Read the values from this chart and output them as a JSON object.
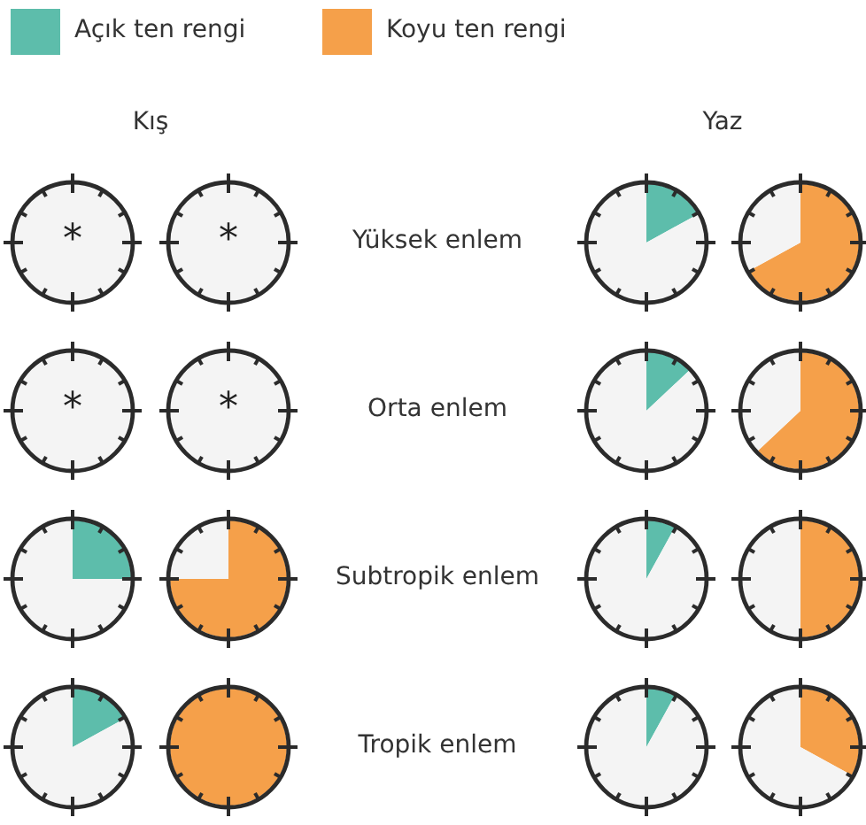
{
  "chart_data": [
    {
      "type": "other",
      "annotations": [
        "Açık ten rengi",
        "Koyu ten rengi",
        "Kış",
        "Yaz",
        "Yüksek enlem",
        "Orta enlem",
        "Subtropik enlem",
        "Tropik enlem"
      ],
      "colors": [
        "#5dbdab",
        "#f5a04a"
      ]
    },
    {
      "type": "pie",
      "categories": [
        null,
        null
      ],
      "values": [
        0,
        100
      ],
      "colors": [
        "#5dbdab",
        "#f4f4f4"
      ],
      "annotations": [
        "*"
      ]
    },
    {
      "type": "pie",
      "categories": [
        null,
        null
      ],
      "values": [
        0,
        100
      ],
      "colors": [
        "#f5a04a",
        "#f4f4f4"
      ],
      "annotations": [
        "*"
      ]
    },
    {
      "type": "pie",
      "categories": [
        null,
        null
      ],
      "values": [
        17,
        83
      ],
      "colors": [
        "#5dbdab",
        "#f4f4f4"
      ]
    },
    {
      "type": "pie",
      "categories": [
        null,
        null
      ],
      "values": [
        67,
        33
      ],
      "colors": [
        "#f5a04a",
        "#f4f4f4"
      ]
    },
    {
      "type": "pie",
      "categories": [
        null,
        null
      ],
      "values": [
        0,
        100
      ],
      "colors": [
        "#5dbdab",
        "#f4f4f4"
      ],
      "annotations": [
        "*"
      ]
    },
    {
      "type": "pie",
      "categories": [
        null,
        null
      ],
      "values": [
        0,
        100
      ],
      "colors": [
        "#f5a04a",
        "#f4f4f4"
      ],
      "annotations": [
        "*"
      ]
    },
    {
      "type": "pie",
      "categories": [
        null,
        null
      ],
      "values": [
        13,
        87
      ],
      "colors": [
        "#5dbdab",
        "#f4f4f4"
      ]
    },
    {
      "type": "pie",
      "categories": [
        null,
        null
      ],
      "values": [
        63,
        37
      ],
      "colors": [
        "#f5a04a",
        "#f4f4f4"
      ]
    },
    {
      "type": "pie",
      "categories": [
        null,
        null
      ],
      "values": [
        25,
        75
      ],
      "colors": [
        "#5dbdab",
        "#f4f4f4"
      ]
    },
    {
      "type": "pie",
      "categories": [
        null,
        null
      ],
      "values": [
        75,
        25
      ],
      "colors": [
        "#f5a04a",
        "#f4f4f4"
      ]
    },
    {
      "type": "pie",
      "categories": [
        null,
        null
      ],
      "values": [
        8,
        92
      ],
      "colors": [
        "#5dbdab",
        "#f4f4f4"
      ]
    },
    {
      "type": "pie",
      "categories": [
        null,
        null
      ],
      "values": [
        50,
        50
      ],
      "colors": [
        "#f5a04a",
        "#f4f4f4"
      ]
    },
    {
      "type": "pie",
      "categories": [
        null,
        null
      ],
      "values": [
        17,
        83
      ],
      "colors": [
        "#5dbdab",
        "#f4f4f4"
      ]
    },
    {
      "type": "pie",
      "categories": [
        null,
        null
      ],
      "values": [
        100,
        0
      ],
      "colors": [
        "#f5a04a",
        "#f4f4f4"
      ]
    },
    {
      "type": "pie",
      "categories": [
        null,
        null
      ],
      "values": [
        8,
        92
      ],
      "colors": [
        "#5dbdab",
        "#f4f4f4"
      ]
    },
    {
      "type": "pie",
      "categories": [
        null,
        null
      ],
      "values": [
        33,
        67
      ],
      "colors": [
        "#f5a04a",
        "#f4f4f4"
      ]
    }
  ]
}
